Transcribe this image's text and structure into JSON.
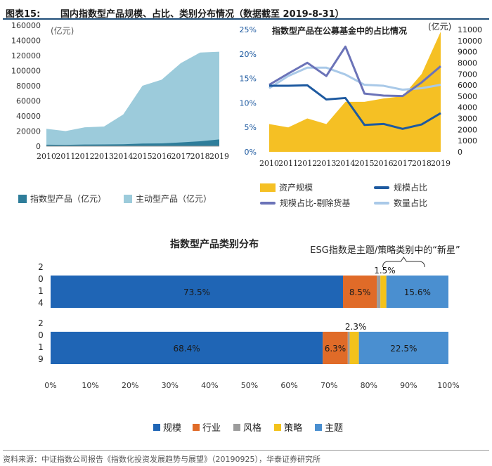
{
  "header": {
    "fig_label": "图表15:",
    "fig_title": "国内指数型产品规模、占比、类别分布情况（数据截至 2019-8-31）"
  },
  "source_note": "资料来源：中证指数公司报告《指数化投资发展趋势与展望》（20190925），华泰证券研究所",
  "chart_data": [
    {
      "type": "area",
      "title": "",
      "unit_label": "(亿元)",
      "x": [
        "2010",
        "2011",
        "2012",
        "2013",
        "2014",
        "2015",
        "2016",
        "2017",
        "2018",
        "2019"
      ],
      "ylim": [
        0,
        160000
      ],
      "yticks": [
        "0",
        "20000",
        "40000",
        "60000",
        "80000",
        "100000",
        "120000",
        "140000",
        "160000"
      ],
      "series": [
        {
          "name": "指数型产品（亿元）",
          "color": "#2e7d9a",
          "values": [
            2000,
            1800,
            2200,
            2300,
            2600,
            3500,
            3700,
            5000,
            6500,
            9000
          ]
        },
        {
          "name": "主动型产品（亿元）",
          "color": "#9ccbdb",
          "values": [
            23000,
            20000,
            25000,
            26000,
            42000,
            80000,
            88000,
            110000,
            124000,
            125000
          ]
        }
      ],
      "legend": [
        "指数型产品（亿元）",
        "主动型产品（亿元）"
      ]
    },
    {
      "type": "line",
      "title": "指数型产品在公募基金中的占比情况",
      "right_unit_label": "(亿元)",
      "x": [
        "2010",
        "2011",
        "2012",
        "2013",
        "2014",
        "2015",
        "2016",
        "2017",
        "2018",
        "2019"
      ],
      "ylim_left": [
        0,
        0.25
      ],
      "yticks_left": [
        "0%",
        "5%",
        "10%",
        "15%",
        "20%",
        "25%"
      ],
      "ylim_right": [
        0,
        11000
      ],
      "yticks_right": [
        "0",
        "1000",
        "2000",
        "3000",
        "4000",
        "5000",
        "6000",
        "7000",
        "8000",
        "9000",
        "10000",
        "11000"
      ],
      "area_series": {
        "name": "资产规模",
        "color": "#f5c024",
        "axis": "right",
        "values": [
          2500,
          2200,
          3000,
          2500,
          4500,
          4500,
          4800,
          5000,
          7000,
          10800
        ]
      },
      "series": [
        {
          "name": "规模占比",
          "color": "#1e5aa0",
          "axis": "left",
          "values": [
            0.135,
            0.135,
            0.136,
            0.107,
            0.11,
            0.055,
            0.057,
            0.047,
            0.056,
            0.079
          ]
        },
        {
          "name": "规模占比-剔除货基",
          "color": "#6b73b8",
          "axis": "left",
          "values": [
            0.137,
            0.16,
            0.182,
            0.155,
            0.215,
            0.119,
            0.115,
            0.114,
            0.142,
            0.175
          ]
        },
        {
          "name": "数量占比",
          "color": "#a9c9e8",
          "axis": "left",
          "values": [
            0.13,
            0.155,
            0.172,
            0.172,
            0.158,
            0.137,
            0.135,
            0.127,
            0.13,
            0.137
          ]
        }
      ],
      "legend": [
        "资产规模",
        "规模占比",
        "规模占比-剔除货基",
        "数量占比"
      ]
    },
    {
      "type": "bar",
      "orientation": "horizontal-stacked",
      "title": "指数型产品类别分布",
      "annotation": "ESG指数是主题/策略类别中的“新星”",
      "categories": [
        "2014",
        "2019"
      ],
      "category_labels": [
        [
          "2",
          "0",
          "1",
          "4"
        ],
        [
          "2",
          "0",
          "1",
          "9"
        ]
      ],
      "xlim": [
        0,
        1
      ],
      "xticks": [
        "0%",
        "10%",
        "20%",
        "30%",
        "40%",
        "50%",
        "60%",
        "70%",
        "80%",
        "90%",
        "100%"
      ],
      "series": [
        {
          "name": "规模",
          "color": "#1f65b5",
          "values": [
            0.735,
            0.684
          ],
          "labels": [
            "73.5%",
            "68.4%"
          ]
        },
        {
          "name": "行业",
          "color": "#e06b28",
          "values": [
            0.085,
            0.063
          ],
          "labels": [
            "8.5%",
            "6.3%"
          ]
        },
        {
          "name": "风格",
          "color": "#9c9c9c",
          "values": [
            0.009,
            0.005
          ],
          "labels": [
            "",
            ""
          ]
        },
        {
          "name": "策略",
          "color": "#f3c21b",
          "values": [
            0.015,
            0.023
          ],
          "labels": [
            "1.5%",
            "2.3%"
          ]
        },
        {
          "name": "主题",
          "color": "#4a8fd0",
          "values": [
            0.156,
            0.225
          ],
          "labels": [
            "15.6%",
            "22.5%"
          ]
        }
      ],
      "legend": [
        "规模",
        "行业",
        "风格",
        "策略",
        "主题"
      ]
    }
  ]
}
